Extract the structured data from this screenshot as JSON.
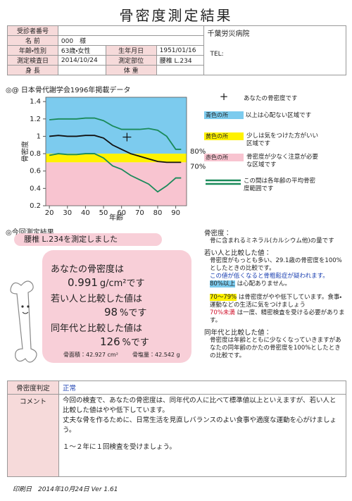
{
  "title": "骨密度測定結果",
  "patient": {
    "id_label": "受診者番号",
    "name_label": "名 前",
    "name": "000　様",
    "age_sex_label": "年齢・性別",
    "age_sex": "63歳・女性",
    "birth_label": "生年月日",
    "birth": "1951/01/16",
    "exam_date_label": "測定検査日",
    "exam_date": "2014/10/24",
    "site_label": "測定部位",
    "site": "腰椎 L.234",
    "height_label": "身 長",
    "weight_label": "体 重"
  },
  "hospital": {
    "name": "千葉労災病院",
    "tel": "TEL:"
  },
  "chart_data": {
    "type": "line",
    "title": "◎@ 日本骨代謝学会1996年掲載データ",
    "ylabel": "骨密度",
    "xlabel": "年齢",
    "x": [
      20,
      25,
      30,
      35,
      40,
      45,
      50,
      55,
      60,
      65,
      70,
      75,
      80,
      85,
      90,
      93
    ],
    "series": [
      {
        "color": "#1a8a5a",
        "values": [
          1.19,
          1.2,
          1.2,
          1.2,
          1.21,
          1.21,
          1.18,
          1.12,
          1.08,
          1.08,
          1.08,
          1.09,
          1.07,
          1.0,
          0.85,
          0.85
        ]
      },
      {
        "color": "#111111",
        "values": [
          1.0,
          1.01,
          1.0,
          1.0,
          1.01,
          1.01,
          0.98,
          0.9,
          0.85,
          0.8,
          0.77,
          0.74,
          0.71,
          0.7,
          0.7,
          0.7
        ]
      },
      {
        "color": "#1a8a5a",
        "values": [
          0.78,
          0.8,
          0.79,
          0.79,
          0.8,
          0.8,
          0.75,
          0.66,
          0.62,
          0.55,
          0.5,
          0.45,
          0.36,
          0.43,
          0.52,
          0.52
        ]
      }
    ],
    "point": {
      "x": 63,
      "y": 0.991
    },
    "xlim": [
      18,
      96
    ],
    "ylim": [
      0.2,
      1.45
    ],
    "xticks": [
      20,
      30,
      40,
      50,
      60,
      70,
      80,
      90
    ],
    "yticks": [
      0.2,
      0.4,
      0.6,
      0.8,
      1,
      1.2,
      1.4
    ],
    "zone_marks": [
      {
        "value": 0.8,
        "label": "80%"
      },
      {
        "value": 0.7,
        "label": "70%"
      }
    ],
    "zone_colors": [
      "#7ccbee",
      "#fff200",
      "#f8c4d0"
    ]
  },
  "legend": {
    "marker": "+",
    "marker_text": "あなたの骨密度です",
    "blue_tag": "青色の所",
    "blue_text": "以上は心配ない区域です",
    "yellow_tag": "黄色の所",
    "yellow_text": "少しは気をつけた方がいい区域です",
    "red_tag": "赤色の所",
    "red_text": "骨密度が少なく注意が必要な区域です",
    "range_text": "この間は各年齢の平均骨密度範囲です"
  },
  "result": {
    "heading": "◎今回測定結果",
    "site_note": "腰椎 L.234を測定しました",
    "bmd_label": "あなたの骨密度は",
    "bmd": "0.991",
    "bmd_unit": "g/cm²です",
    "young_label": "若い人と比較した値は",
    "young": "98",
    "young_unit": "%です",
    "age_label": "同年代と比較した値は",
    "age": "126",
    "age_unit": "%です",
    "area": "骨面積：42.927 cm²",
    "mineral": "骨塩量：42.542 g"
  },
  "explanation": {
    "bmd_title": "骨密度：",
    "bmd_text": "骨に含まれるミネラル(カルシウム他)の量です",
    "young_title": "若い人と比較した値：",
    "young_text": "骨密度がもっとも多い、29.1歳の骨密度を100%としたときの比較です。",
    "young_warn": "この値が低くなると骨粗鬆症が疑われます。",
    "ok_range": "80%以上",
    "ok_text": "は心配ありません。",
    "mid_range": "70〜79%",
    "mid_text": "は骨密度がやや低下しています。食事・運動などの生活に気をつけましょう",
    "low_range": "70%未満",
    "low_text": "は一度、精密検査を受ける必要があります。",
    "age_title": "同年代と比較した値：",
    "age_text": "骨密度は年齢とともに少なくなっていきますがあなたの同年齢のかたの骨密度を100%としたときの比較です。"
  },
  "judgement": {
    "label": "骨密度判定",
    "value": "正常"
  },
  "comment": {
    "label": "コメント",
    "lines": [
      "今回の検査で、あなたの骨密度は、同年代の人に比べて標準値以上といえますが、若い人と比較した値はやや低下しています。",
      "丈夫な骨を作るために、日常生活を見直しバランスのよい食事や適度な運動を心がけましょう。",
      "１～２年に１回検査を受けましょう。"
    ]
  },
  "footer": "印刷日　2014年10月24日 Ver 1.61"
}
